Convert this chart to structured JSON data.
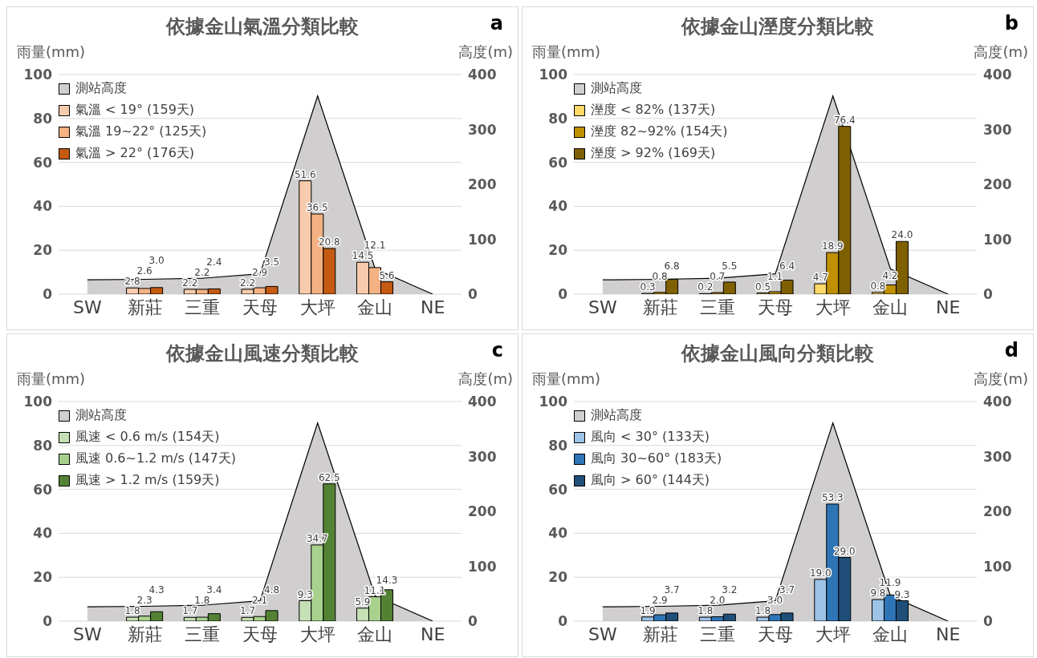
{
  "chart_data": [
    {
      "type": "bar",
      "title": "依據金山氣溫分類比較",
      "ylabel": "雨量(mm)",
      "y2label": "高度(m)",
      "annotations": [
        "a"
      ],
      "categories": [
        "SW",
        "新莊",
        "三重",
        "天母",
        "大坪",
        "金山",
        "NE"
      ],
      "ylim": [
        0,
        100
      ],
      "yticks": [
        0,
        20,
        40,
        60,
        80,
        100
      ],
      "y2lim": [
        0,
        400
      ],
      "y2ticks": [
        0,
        100,
        200,
        300,
        400
      ],
      "grid": "y",
      "legend": "top left",
      "series": [
        {
          "name": "測站高度",
          "type": "area",
          "axis": "y2",
          "color": "#d0cece",
          "values": [
            26,
            27,
            29,
            37,
            361,
            46,
            0
          ]
        },
        {
          "name": "氣溫 < 19° (159天)",
          "color": "#f8cbad",
          "values": [
            null,
            2.8,
            2.2,
            2.2,
            51.6,
            14.5,
            null
          ],
          "value_labels": [
            null,
            "2.8",
            "2.2",
            "2.2",
            "51.6",
            "14.5",
            null
          ]
        },
        {
          "name": "氣溫 19~22° (125天)",
          "color": "#f4b183",
          "values": [
            null,
            2.6,
            2.2,
            2.9,
            36.5,
            12.1,
            null
          ],
          "value_labels": [
            null,
            "2.6",
            "2.2",
            "2.9",
            "36.5",
            "12.1",
            null
          ]
        },
        {
          "name": "氣溫 > 22° (176天)",
          "color": "#c55a11",
          "values": [
            null,
            3.0,
            2.4,
            3.5,
            20.8,
            5.6,
            null
          ],
          "value_labels": [
            null,
            "3.0",
            "2.4",
            "3.5",
            "20.8",
            "5.6",
            null
          ]
        }
      ]
    },
    {
      "type": "bar",
      "title": "依據金山溼度分類比較",
      "ylabel": "雨量(mm)",
      "y2label": "高度(m)",
      "annotations": [
        "b"
      ],
      "categories": [
        "SW",
        "新莊",
        "三重",
        "天母",
        "大坪",
        "金山",
        "NE"
      ],
      "ylim": [
        0,
        100
      ],
      "yticks": [
        0,
        20,
        40,
        60,
        80,
        100
      ],
      "y2lim": [
        0,
        400
      ],
      "y2ticks": [
        0,
        100,
        200,
        300,
        400
      ],
      "grid": "y",
      "legend": "top left",
      "series": [
        {
          "name": "測站高度",
          "type": "area",
          "axis": "y2",
          "color": "#d0cece",
          "values": [
            26,
            27,
            29,
            37,
            361,
            46,
            0
          ]
        },
        {
          "name": "溼度 < 82% (137天)",
          "color": "#ffd966",
          "values": [
            null,
            0.3,
            0.2,
            0.5,
            4.7,
            0.8,
            null
          ],
          "value_labels": [
            null,
            "0.3",
            "0.2",
            "0.5",
            "4.7",
            "0.8",
            null
          ]
        },
        {
          "name": "溼度 82~92% (154天)",
          "color": "#bf9000",
          "values": [
            null,
            0.8,
            0.7,
            1.1,
            18.9,
            4.2,
            null
          ],
          "value_labels": [
            null,
            "0.8",
            "0.7",
            "1.1",
            "18.9",
            "4.2",
            null
          ]
        },
        {
          "name": "溼度 > 92% (169天)",
          "color": "#7f6000",
          "values": [
            null,
            6.8,
            5.5,
            6.4,
            76.4,
            24.0,
            null
          ],
          "value_labels": [
            null,
            "6.8",
            "5.5",
            "6.4",
            "76.4",
            "24.0",
            null
          ]
        }
      ]
    },
    {
      "type": "bar",
      "title": "依據金山風速分類比較",
      "ylabel": "雨量(mm)",
      "y2label": "高度(m)",
      "annotations": [
        "c"
      ],
      "categories": [
        "SW",
        "新莊",
        "三重",
        "天母",
        "大坪",
        "金山",
        "NE"
      ],
      "ylim": [
        0,
        100
      ],
      "yticks": [
        0,
        20,
        40,
        60,
        80,
        100
      ],
      "y2lim": [
        0,
        400
      ],
      "y2ticks": [
        0,
        100,
        200,
        300,
        400
      ],
      "grid": "y",
      "legend": "top left",
      "series": [
        {
          "name": "測站高度",
          "type": "area",
          "axis": "y2",
          "color": "#d0cece",
          "values": [
            26,
            27,
            29,
            37,
            361,
            46,
            0
          ]
        },
        {
          "name": "風速 < 0.6 m/s (154天)",
          "color": "#c5e0b4",
          "values": [
            null,
            1.8,
            1.7,
            1.7,
            9.3,
            5.9,
            null
          ],
          "value_labels": [
            null,
            "1.8",
            "1.7",
            "1.7",
            "9.3",
            "5.9",
            null
          ]
        },
        {
          "name": "風速 0.6~1.2 m/s (147天)",
          "color": "#a9d18e",
          "values": [
            null,
            2.3,
            1.8,
            2.1,
            34.7,
            11.1,
            null
          ],
          "value_labels": [
            null,
            "2.3",
            "1.8",
            "2.1",
            "34.7",
            "11.1",
            null
          ]
        },
        {
          "name": "風速 > 1.2 m/s (159天)",
          "color": "#548235",
          "values": [
            null,
            4.3,
            3.4,
            4.8,
            62.5,
            14.3,
            null
          ],
          "value_labels": [
            null,
            "4.3",
            "3.4",
            "4.8",
            "62.5",
            "14.3",
            null
          ]
        }
      ]
    },
    {
      "type": "bar",
      "title": "依據金山風向分類比較",
      "ylabel": "雨量(mm)",
      "y2label": "高度(m)",
      "annotations": [
        "d"
      ],
      "categories": [
        "SW",
        "新莊",
        "三重",
        "天母",
        "大坪",
        "金山",
        "NE"
      ],
      "ylim": [
        0,
        100
      ],
      "yticks": [
        0,
        20,
        40,
        60,
        80,
        100
      ],
      "y2lim": [
        0,
        400
      ],
      "y2ticks": [
        0,
        100,
        200,
        300,
        400
      ],
      "grid": "y",
      "legend": "top left",
      "series": [
        {
          "name": "測站高度",
          "type": "area",
          "axis": "y2",
          "color": "#d0cece",
          "values": [
            26,
            27,
            29,
            37,
            361,
            46,
            0
          ]
        },
        {
          "name": "風向 < 30° (133天)",
          "color": "#9dc3e6",
          "values": [
            null,
            1.9,
            1.8,
            1.8,
            19.0,
            9.8,
            null
          ],
          "value_labels": [
            null,
            "1.9",
            "1.8",
            "1.8",
            "19.0",
            "9.8",
            null
          ]
        },
        {
          "name": "風向 30~60° (183天)",
          "color": "#2e75b6",
          "values": [
            null,
            2.9,
            2.0,
            3.0,
            53.3,
            11.9,
            null
          ],
          "value_labels": [
            null,
            "2.9",
            "2.0",
            "3.0",
            "53.3",
            "11.9",
            null
          ]
        },
        {
          "name": "風向 > 60° (144天)",
          "color": "#1f4e79",
          "values": [
            null,
            3.7,
            3.2,
            3.7,
            29.0,
            9.3,
            null
          ],
          "value_labels": [
            null,
            "3.7",
            "3.2",
            "3.7",
            "29.0",
            "9.3",
            null
          ]
        }
      ]
    }
  ]
}
